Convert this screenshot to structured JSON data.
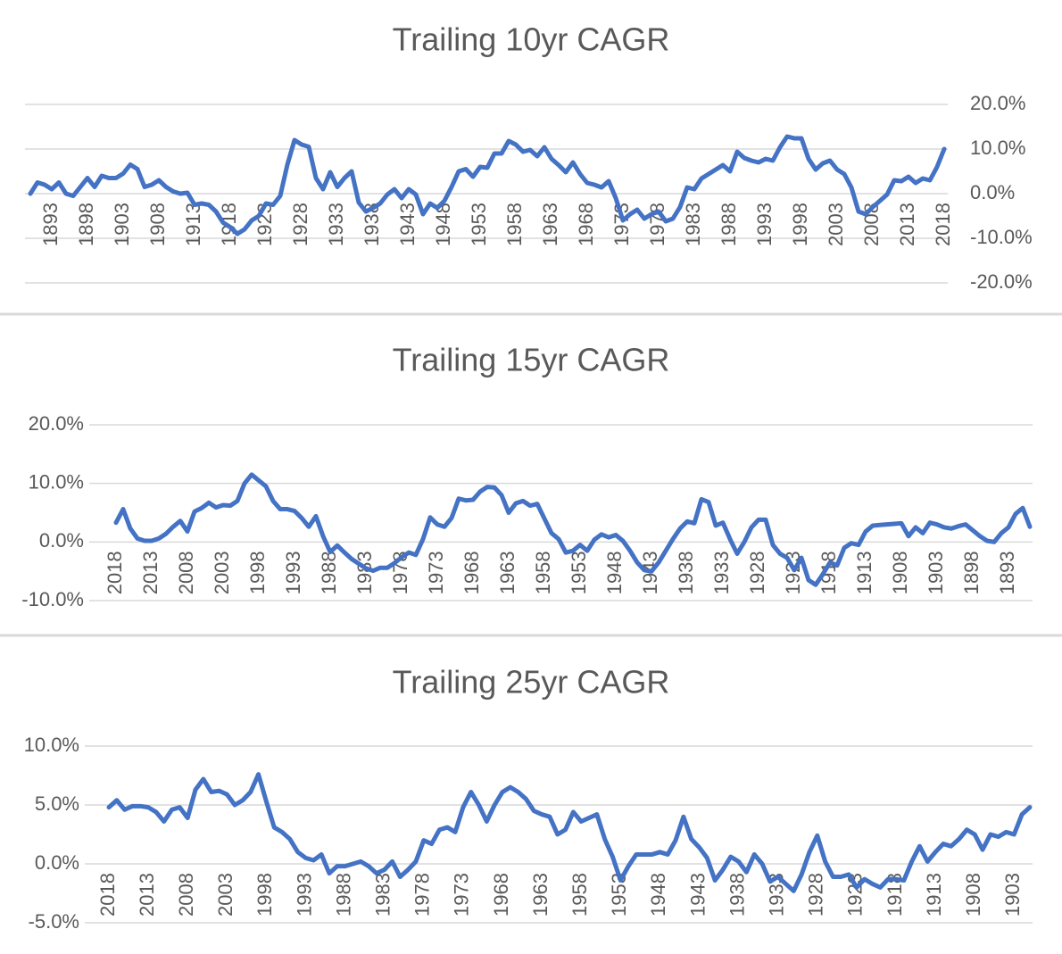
{
  "chart_data": [
    {
      "type": "line",
      "title": "Trailing 10yr CAGR",
      "yaxis_position": "right",
      "grid": true,
      "categories": [
        null,
        null,
        null,
        "1893",
        null,
        null,
        null,
        null,
        "1898",
        null,
        null,
        null,
        null,
        "1903",
        null,
        null,
        null,
        null,
        "1908",
        null,
        null,
        null,
        null,
        "1913",
        null,
        null,
        null,
        null,
        "1918",
        null,
        null,
        null,
        null,
        "1923",
        null,
        null,
        null,
        null,
        "1928",
        null,
        null,
        null,
        null,
        "1933",
        null,
        null,
        null,
        null,
        "1938",
        null,
        null,
        null,
        null,
        "1943",
        null,
        null,
        null,
        null,
        "1948",
        null,
        null,
        null,
        null,
        "1953",
        null,
        null,
        null,
        null,
        "1958",
        null,
        null,
        null,
        null,
        "1963",
        null,
        null,
        null,
        null,
        "1968",
        null,
        null,
        null,
        null,
        "1973",
        null,
        null,
        null,
        null,
        "1978",
        null,
        null,
        null,
        null,
        "1983",
        null,
        null,
        null,
        null,
        "1988",
        null,
        null,
        null,
        null,
        "1993",
        null,
        null,
        null,
        null,
        "1998",
        null,
        null,
        null,
        null,
        "2003",
        null,
        null,
        null,
        null,
        "2008",
        null,
        null,
        null,
        null,
        "2013",
        null,
        null,
        null,
        null,
        "2018"
      ],
      "series": [
        {
          "color": "#4472c4",
          "values": [
            0,
            2.5,
            2,
            1,
            2.5,
            0,
            -0.5,
            1.5,
            3.5,
            1.5,
            4,
            3.5,
            3.5,
            4.5,
            6.5,
            5.5,
            1.5,
            2,
            3,
            1.5,
            0.5,
            0,
            0.2,
            -2.5,
            -2.2,
            -2.5,
            -4,
            -6.5,
            -7.5,
            -9,
            -8,
            -6,
            -5,
            -2.2,
            -2.5,
            -0.5,
            6.5,
            12,
            11,
            10.5,
            3.5,
            1,
            4.8,
            1.5,
            3.5,
            5,
            -2,
            -4,
            -3.2,
            -2.2,
            -0.2,
            1,
            -1,
            1,
            -0.2,
            -4.6,
            -2.2,
            -3.2,
            -1.6,
            1.5,
            5,
            5.5,
            3.8,
            6,
            5.8,
            9,
            9,
            11.8,
            11,
            9.4,
            9.8,
            8.4,
            10.4,
            7.8,
            6.4,
            4.8,
            7,
            4.4,
            2.4,
            2,
            1.4,
            2.8,
            -1,
            -6,
            -4.6,
            -3.6,
            -5.6,
            -4.6,
            -4,
            -6.2,
            -5.6,
            -3,
            1.4,
            1,
            3.4,
            4.4,
            5.4,
            6.4,
            5,
            9.4,
            8,
            7.4,
            7,
            7.8,
            7.4,
            10.4,
            12.8,
            12.4,
            12.4,
            7.8,
            5.4,
            6.8,
            7.4,
            5.4,
            4.4,
            1.4,
            -4,
            -4.6,
            -3,
            -1.6,
            -0.2,
            3,
            2.8,
            3.8,
            2.4,
            3.4,
            3,
            6,
            10
          ]
        }
      ],
      "ylim": [
        -20,
        20
      ],
      "yticks": [
        {
          "value": -20,
          "label": "-20.0%"
        },
        {
          "value": -10,
          "label": "-10.0%"
        },
        {
          "value": 0,
          "label": "0.0%"
        },
        {
          "value": 10,
          "label": "10.0%"
        },
        {
          "value": 20,
          "label": "20.0%"
        }
      ]
    },
    {
      "type": "line",
      "title": "Trailing 15yr CAGR",
      "yaxis_position": "left",
      "grid": true,
      "categories": [
        "2018",
        null,
        null,
        null,
        null,
        "2013",
        null,
        null,
        null,
        null,
        "2008",
        null,
        null,
        null,
        null,
        "2003",
        null,
        null,
        null,
        null,
        "1998",
        null,
        null,
        null,
        null,
        "1993",
        null,
        null,
        null,
        null,
        "1988",
        null,
        null,
        null,
        null,
        "1983",
        null,
        null,
        null,
        null,
        "1978",
        null,
        null,
        null,
        null,
        "1973",
        null,
        null,
        null,
        null,
        "1968",
        null,
        null,
        null,
        null,
        "1963",
        null,
        null,
        null,
        null,
        "1958",
        null,
        null,
        null,
        null,
        "1953",
        null,
        null,
        null,
        null,
        "1948",
        null,
        null,
        null,
        null,
        "1943",
        null,
        null,
        null,
        null,
        "1938",
        null,
        null,
        null,
        null,
        "1933",
        null,
        null,
        null,
        null,
        "1928",
        null,
        null,
        null,
        null,
        "1923",
        null,
        null,
        null,
        null,
        "1918",
        null,
        null,
        null,
        null,
        "1913",
        null,
        null,
        null,
        null,
        "1908",
        null,
        null,
        null,
        null,
        "1903",
        null,
        null,
        null,
        null,
        "1898",
        null,
        null,
        null,
        null,
        "1893",
        null,
        null,
        null
      ],
      "series": [
        {
          "color": "#4472c4",
          "values": [
            3.3,
            5.6,
            2.3,
            0.6,
            0.2,
            0.2,
            0.6,
            1.4,
            2.6,
            3.6,
            1.8,
            5.2,
            5.8,
            6.7,
            5.9,
            6.3,
            6.2,
            7,
            10,
            11.5,
            10.5,
            9.5,
            7,
            5.6,
            5.6,
            5.3,
            4.1,
            2.6,
            4.4,
            1,
            -1.7,
            -0.6,
            -1.8,
            -2.9,
            -3.7,
            -4.5,
            -4.9,
            -4.4,
            -4.4,
            -3.6,
            -2.6,
            -1.8,
            -2.2,
            0.5,
            4.2,
            3,
            2.6,
            4.1,
            7.4,
            7.1,
            7.2,
            8.6,
            9.4,
            9.3,
            8,
            5,
            6.6,
            7,
            6.2,
            6.5,
            4,
            1.5,
            0.5,
            -1.8,
            -1.5,
            -0.5,
            -1.5,
            0.4,
            1.3,
            0.8,
            1.2,
            0.2,
            -1.5,
            -3.5,
            -4.8,
            -5,
            -3.5,
            -1.5,
            0.5,
            2.3,
            3.5,
            3.2,
            7.3,
            6.8,
            2.8,
            3.3,
            0.5,
            -2,
            0,
            2.5,
            3.8,
            3.8,
            -0.5,
            -2,
            -2.7,
            -4.8,
            -2.7,
            -6.5,
            -7.3,
            -5.5,
            -3.5,
            -4,
            -1,
            -0.2,
            -0.5,
            1.8,
            2.8,
            2.9,
            3,
            3.1,
            3.2,
            1,
            2.5,
            1.5,
            3.3,
            3,
            2.5,
            2.3,
            2.7,
            3,
            2,
            1,
            0.2,
            0,
            1.5,
            2.5,
            4.8,
            5.8,
            2.6
          ]
        }
      ],
      "ylim": [
        -10,
        20
      ],
      "yticks": [
        {
          "value": -10,
          "label": "-10.0%"
        },
        {
          "value": 0,
          "label": "0.0%"
        },
        {
          "value": 10,
          "label": "10.0%"
        },
        {
          "value": 20,
          "label": "20.0%"
        }
      ]
    },
    {
      "type": "line",
      "title": "Trailing 25yr CAGR",
      "yaxis_position": "left",
      "grid": true,
      "categories": [
        "2018",
        null,
        null,
        null,
        null,
        "2013",
        null,
        null,
        null,
        null,
        "2008",
        null,
        null,
        null,
        null,
        "2003",
        null,
        null,
        null,
        null,
        "1998",
        null,
        null,
        null,
        null,
        "1993",
        null,
        null,
        null,
        null,
        "1988",
        null,
        null,
        null,
        null,
        "1983",
        null,
        null,
        null,
        null,
        "1978",
        null,
        null,
        null,
        null,
        "1973",
        null,
        null,
        null,
        null,
        "1968",
        null,
        null,
        null,
        null,
        "1963",
        null,
        null,
        null,
        null,
        "1958",
        null,
        null,
        null,
        null,
        "1953",
        null,
        null,
        null,
        null,
        "1948",
        null,
        null,
        null,
        null,
        "1943",
        null,
        null,
        null,
        null,
        "1938",
        null,
        null,
        null,
        null,
        "1933",
        null,
        null,
        null,
        null,
        "1928",
        null,
        null,
        null,
        null,
        "1923",
        null,
        null,
        null,
        null,
        "1918",
        null,
        null,
        null,
        null,
        "1913",
        null,
        null,
        null,
        null,
        "1908",
        null,
        null,
        null,
        null,
        "1903",
        null,
        null
      ],
      "series": [
        {
          "color": "#4472c4",
          "values": [
            4.8,
            5.4,
            4.6,
            4.9,
            4.9,
            4.8,
            4.4,
            3.6,
            4.6,
            4.8,
            3.9,
            6.3,
            7.2,
            6.1,
            6.2,
            5.9,
            5.0,
            5.4,
            6.1,
            7.6,
            5.3,
            3.1,
            2.7,
            2.1,
            1.0,
            0.5,
            0.3,
            0.8,
            -0.8,
            -0.2,
            -0.2,
            0,
            0.2,
            -0.2,
            -0.8,
            -0.5,
            0.2,
            -1.1,
            -0.5,
            0.2,
            2.0,
            1.7,
            2.9,
            3.1,
            2.7,
            4.8,
            6.1,
            5.0,
            3.6,
            5.0,
            6.1,
            6.5,
            6.1,
            5.5,
            4.5,
            4.2,
            4.0,
            2.5,
            2.9,
            4.4,
            3.6,
            3.9,
            4.2,
            2.1,
            0.6,
            -1.4,
            -0.2,
            0.8,
            0.8,
            0.8,
            1.0,
            0.8,
            2.0,
            4.0,
            2.1,
            1.4,
            0.5,
            -1.4,
            -0.5,
            0.6,
            0.2,
            -0.7,
            0.8,
            0,
            -1.5,
            -1.1,
            -1.7,
            -2.3,
            -0.9,
            1.0,
            2.4,
            0.2,
            -1.1,
            -1.1,
            -0.9,
            -2.0,
            -1.3,
            -1.7,
            -2.0,
            -1.3,
            -1.3,
            -1.4,
            0.2,
            1.5,
            0.2,
            1.0,
            1.7,
            1.5,
            2.1,
            2.9,
            2.5,
            1.2,
            2.5,
            2.3,
            2.7,
            2.5,
            4.2,
            4.8
          ]
        }
      ],
      "ylim": [
        -5,
        10
      ],
      "yticks": [
        {
          "value": -5,
          "label": "-5.0%"
        },
        {
          "value": 0,
          "label": "0.0%"
        },
        {
          "value": 5,
          "label": "5.0%"
        },
        {
          "value": 10,
          "label": "10.0%"
        }
      ]
    }
  ]
}
